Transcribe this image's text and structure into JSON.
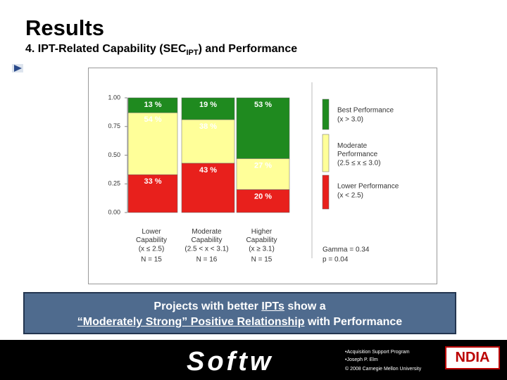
{
  "title": "Results",
  "subtitle": [
    "4. IPT-Related Capability (SEC",
    "IPT",
    ") and Performance"
  ],
  "chart_data": {
    "type": "bar",
    "stacked": true,
    "categories": [
      "Lower Capability",
      "Moderate Capability",
      "Higher Capability"
    ],
    "category_ranges": [
      "(x ≤ 2.5)",
      "(2.5 < x < 3.1)",
      "(x ≥ 3.1)"
    ],
    "category_n": [
      "N = 15",
      "N = 16",
      "N = 15"
    ],
    "series": [
      {
        "name": "Best Performance",
        "detail": "(x > 3.0)",
        "color": "#1f8a1f",
        "values": [
          0.13,
          0.19,
          0.53
        ],
        "value_labels": [
          "13 %",
          "19 %",
          "53 %"
        ]
      },
      {
        "name": "Moderate Performance",
        "detail": "(2.5 ≤ x ≤ 3.0)",
        "color": "#ffff99",
        "values": [
          0.54,
          0.38,
          0.27
        ],
        "value_labels": [
          "54 %",
          "38 %",
          "27 %"
        ]
      },
      {
        "name": "Lower Performance",
        "detail": "(x < 2.5)",
        "color": "#e8201c",
        "values": [
          0.33,
          0.43,
          0.2
        ],
        "value_labels": [
          "33 %",
          "43 %",
          "20 %"
        ]
      }
    ],
    "ylim": [
      0,
      1
    ],
    "yticks": [
      {
        "value": 0,
        "label": "0.00"
      },
      {
        "value": 0.25,
        "label": "0.25"
      },
      {
        "value": 0.5,
        "label": "0.50"
      },
      {
        "value": 0.75,
        "label": "0.75"
      },
      {
        "value": 1,
        "label": "1.00"
      }
    ],
    "stats": [
      "Gamma = 0.34",
      "p = 0.04"
    ]
  },
  "banner": {
    "line1": [
      "Projects with better ",
      "IPTs",
      " show a"
    ],
    "line2": [
      "“Moderately Strong” Positive Relationship",
      " with  Performance"
    ]
  },
  "footer": {
    "logo": "Softw",
    "notes": [
      "•Acquisition Support Program",
      "•Joseph P. Elm",
      "© 2008 Carnegie Mellon University"
    ],
    "badge": "NDIA"
  }
}
